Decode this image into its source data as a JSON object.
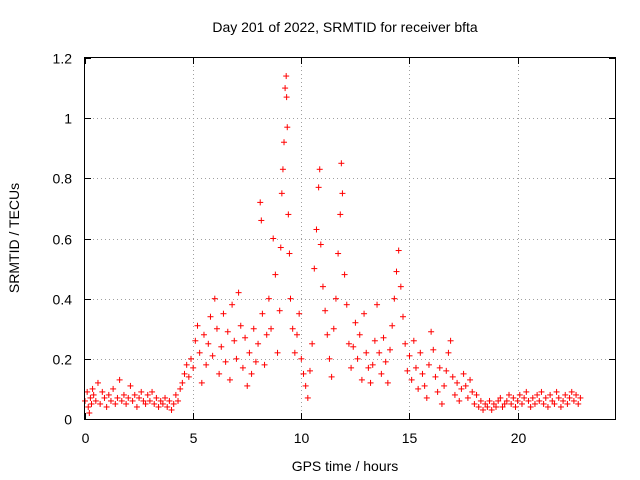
{
  "chart_data": {
    "type": "scatter",
    "title": "Day 201 of 2022, SRMTID for receiver bfta",
    "xlabel": "GPS time / hours",
    "ylabel": "SRMTID / TECUs",
    "xlim": [
      0,
      24.5
    ],
    "ylim": [
      0,
      1.2
    ],
    "x_ticks": [
      0,
      5,
      10,
      15,
      20
    ],
    "y_ticks": [
      0,
      0.2,
      0.4,
      0.6,
      0.8,
      1,
      1.2
    ],
    "x_tick_labels": [
      "0",
      "5",
      "10",
      "15",
      "20"
    ],
    "y_tick_labels": [
      "0",
      "0.2",
      "0.4",
      "0.6",
      "0.8",
      "1",
      "1.2"
    ],
    "grid": true,
    "marker": "plus",
    "color": "#ff0000",
    "series": [
      {
        "name": "SRMTID",
        "points": [
          [
            0.0,
            0.06
          ],
          [
            0.1,
            0.09
          ],
          [
            0.15,
            0.04
          ],
          [
            0.2,
            0.02
          ],
          [
            0.25,
            0.07
          ],
          [
            0.3,
            0.05
          ],
          [
            0.35,
            0.1
          ],
          [
            0.4,
            0.08
          ],
          [
            0.5,
            0.06
          ],
          [
            0.6,
            0.12
          ],
          [
            0.7,
            0.05
          ],
          [
            0.8,
            0.09
          ],
          [
            0.9,
            0.07
          ],
          [
            1.0,
            0.04
          ],
          [
            1.1,
            0.08
          ],
          [
            1.2,
            0.06
          ],
          [
            1.3,
            0.1
          ],
          [
            1.4,
            0.05
          ],
          [
            1.5,
            0.07
          ],
          [
            1.6,
            0.13
          ],
          [
            1.7,
            0.06
          ],
          [
            1.8,
            0.08
          ],
          [
            1.9,
            0.05
          ],
          [
            2.0,
            0.07
          ],
          [
            2.1,
            0.11
          ],
          [
            2.2,
            0.06
          ],
          [
            2.3,
            0.08
          ],
          [
            2.4,
            0.04
          ],
          [
            2.5,
            0.07
          ],
          [
            2.6,
            0.09
          ],
          [
            2.7,
            0.06
          ],
          [
            2.8,
            0.05
          ],
          [
            2.9,
            0.08
          ],
          [
            3.0,
            0.06
          ],
          [
            3.1,
            0.09
          ],
          [
            3.2,
            0.05
          ],
          [
            3.3,
            0.07
          ],
          [
            3.4,
            0.04
          ],
          [
            3.5,
            0.06
          ],
          [
            3.6,
            0.05
          ],
          [
            3.7,
            0.07
          ],
          [
            3.8,
            0.04
          ],
          [
            3.9,
            0.06
          ],
          [
            4.0,
            0.03
          ],
          [
            4.1,
            0.05
          ],
          [
            4.2,
            0.08
          ],
          [
            4.3,
            0.06
          ],
          [
            4.4,
            0.1
          ],
          [
            4.5,
            0.12
          ],
          [
            4.6,
            0.15
          ],
          [
            4.7,
            0.18
          ],
          [
            4.8,
            0.14
          ],
          [
            4.9,
            0.2
          ],
          [
            5.0,
            0.17
          ],
          [
            5.1,
            0.26
          ],
          [
            5.2,
            0.31
          ],
          [
            5.3,
            0.22
          ],
          [
            5.4,
            0.12
          ],
          [
            5.5,
            0.28
          ],
          [
            5.6,
            0.18
          ],
          [
            5.7,
            0.25
          ],
          [
            5.8,
            0.34
          ],
          [
            5.9,
            0.21
          ],
          [
            6.0,
            0.4
          ],
          [
            6.1,
            0.3
          ],
          [
            6.2,
            0.15
          ],
          [
            6.3,
            0.24
          ],
          [
            6.4,
            0.35
          ],
          [
            6.5,
            0.19
          ],
          [
            6.6,
            0.29
          ],
          [
            6.7,
            0.13
          ],
          [
            6.8,
            0.38
          ],
          [
            6.9,
            0.26
          ],
          [
            7.0,
            0.2
          ],
          [
            7.1,
            0.42
          ],
          [
            7.2,
            0.31
          ],
          [
            7.3,
            0.17
          ],
          [
            7.4,
            0.27
          ],
          [
            7.5,
            0.11
          ],
          [
            7.6,
            0.22
          ],
          [
            7.7,
            0.15
          ],
          [
            7.8,
            0.3
          ],
          [
            7.9,
            0.19
          ],
          [
            8.0,
            0.25
          ],
          [
            8.1,
            0.72
          ],
          [
            8.15,
            0.66
          ],
          [
            8.2,
            0.35
          ],
          [
            8.3,
            0.18
          ],
          [
            8.4,
            0.28
          ],
          [
            8.5,
            0.4
          ],
          [
            8.6,
            0.3
          ],
          [
            8.7,
            0.6
          ],
          [
            8.8,
            0.48
          ],
          [
            8.9,
            0.22
          ],
          [
            9.0,
            0.36
          ],
          [
            9.05,
            0.57
          ],
          [
            9.1,
            0.75
          ],
          [
            9.15,
            0.83
          ],
          [
            9.2,
            0.92
          ],
          [
            9.25,
            1.1
          ],
          [
            9.3,
            1.14
          ],
          [
            9.32,
            1.07
          ],
          [
            9.35,
            0.97
          ],
          [
            9.4,
            0.68
          ],
          [
            9.45,
            0.55
          ],
          [
            9.5,
            0.4
          ],
          [
            9.6,
            0.3
          ],
          [
            9.7,
            0.22
          ],
          [
            9.8,
            0.28
          ],
          [
            9.9,
            0.35
          ],
          [
            10.0,
            0.2
          ],
          [
            10.1,
            0.15
          ],
          [
            10.2,
            0.11
          ],
          [
            10.3,
            0.07
          ],
          [
            10.4,
            0.16
          ],
          [
            10.5,
            0.25
          ],
          [
            10.6,
            0.5
          ],
          [
            10.7,
            0.63
          ],
          [
            10.8,
            0.77
          ],
          [
            10.85,
            0.83
          ],
          [
            10.9,
            0.58
          ],
          [
            11.0,
            0.44
          ],
          [
            11.1,
            0.36
          ],
          [
            11.2,
            0.28
          ],
          [
            11.3,
            0.2
          ],
          [
            11.4,
            0.14
          ],
          [
            11.5,
            0.3
          ],
          [
            11.6,
            0.4
          ],
          [
            11.7,
            0.55
          ],
          [
            11.8,
            0.68
          ],
          [
            11.85,
            0.85
          ],
          [
            11.9,
            0.75
          ],
          [
            12.0,
            0.48
          ],
          [
            12.1,
            0.38
          ],
          [
            12.2,
            0.25
          ],
          [
            12.3,
            0.17
          ],
          [
            12.4,
            0.24
          ],
          [
            12.5,
            0.32
          ],
          [
            12.6,
            0.2
          ],
          [
            12.7,
            0.28
          ],
          [
            12.8,
            0.13
          ],
          [
            12.9,
            0.35
          ],
          [
            13.0,
            0.22
          ],
          [
            13.1,
            0.17
          ],
          [
            13.2,
            0.12
          ],
          [
            13.3,
            0.18
          ],
          [
            13.4,
            0.26
          ],
          [
            13.5,
            0.38
          ],
          [
            13.6,
            0.22
          ],
          [
            13.7,
            0.15
          ],
          [
            13.8,
            0.27
          ],
          [
            13.9,
            0.19
          ],
          [
            14.0,
            0.12
          ],
          [
            14.1,
            0.23
          ],
          [
            14.2,
            0.31
          ],
          [
            14.3,
            0.4
          ],
          [
            14.4,
            0.49
          ],
          [
            14.5,
            0.56
          ],
          [
            14.6,
            0.44
          ],
          [
            14.7,
            0.34
          ],
          [
            14.8,
            0.25
          ],
          [
            14.9,
            0.16
          ],
          [
            15.0,
            0.21
          ],
          [
            15.1,
            0.13
          ],
          [
            15.2,
            0.26
          ],
          [
            15.3,
            0.17
          ],
          [
            15.4,
            0.1
          ],
          [
            15.5,
            0.22
          ],
          [
            15.6,
            0.15
          ],
          [
            15.7,
            0.11
          ],
          [
            15.8,
            0.07
          ],
          [
            15.9,
            0.18
          ],
          [
            16.0,
            0.29
          ],
          [
            16.1,
            0.23
          ],
          [
            16.2,
            0.14
          ],
          [
            16.3,
            0.09
          ],
          [
            16.4,
            0.17
          ],
          [
            16.5,
            0.05
          ],
          [
            16.6,
            0.11
          ],
          [
            16.7,
            0.16
          ],
          [
            16.8,
            0.22
          ],
          [
            16.9,
            0.26
          ],
          [
            17.0,
            0.14
          ],
          [
            17.1,
            0.08
          ],
          [
            17.2,
            0.12
          ],
          [
            17.3,
            0.06
          ],
          [
            17.4,
            0.1
          ],
          [
            17.5,
            0.15
          ],
          [
            17.6,
            0.11
          ],
          [
            17.7,
            0.07
          ],
          [
            17.8,
            0.13
          ],
          [
            17.9,
            0.09
          ],
          [
            18.0,
            0.05
          ],
          [
            18.1,
            0.08
          ],
          [
            18.2,
            0.04
          ],
          [
            18.3,
            0.06
          ],
          [
            18.4,
            0.03
          ],
          [
            18.5,
            0.05
          ],
          [
            18.6,
            0.04
          ],
          [
            18.7,
            0.06
          ],
          [
            18.8,
            0.03
          ],
          [
            18.9,
            0.05
          ],
          [
            19.0,
            0.04
          ],
          [
            19.1,
            0.06
          ],
          [
            19.2,
            0.07
          ],
          [
            19.3,
            0.04
          ],
          [
            19.4,
            0.05
          ],
          [
            19.5,
            0.06
          ],
          [
            19.6,
            0.08
          ],
          [
            19.7,
            0.05
          ],
          [
            19.8,
            0.07
          ],
          [
            19.9,
            0.04
          ],
          [
            20.0,
            0.06
          ],
          [
            20.1,
            0.08
          ],
          [
            20.2,
            0.05
          ],
          [
            20.3,
            0.07
          ],
          [
            20.4,
            0.09
          ],
          [
            20.5,
            0.06
          ],
          [
            20.6,
            0.04
          ],
          [
            20.7,
            0.07
          ],
          [
            20.8,
            0.05
          ],
          [
            20.9,
            0.08
          ],
          [
            21.0,
            0.06
          ],
          [
            21.1,
            0.09
          ],
          [
            21.2,
            0.05
          ],
          [
            21.3,
            0.07
          ],
          [
            21.4,
            0.04
          ],
          [
            21.5,
            0.08
          ],
          [
            21.6,
            0.06
          ],
          [
            21.7,
            0.05
          ],
          [
            21.8,
            0.09
          ],
          [
            21.9,
            0.07
          ],
          [
            22.0,
            0.04
          ],
          [
            22.1,
            0.06
          ],
          [
            22.2,
            0.08
          ],
          [
            22.3,
            0.05
          ],
          [
            22.4,
            0.07
          ],
          [
            22.5,
            0.09
          ],
          [
            22.6,
            0.06
          ],
          [
            22.7,
            0.08
          ],
          [
            22.8,
            0.05
          ],
          [
            22.9,
            0.07
          ]
        ]
      }
    ]
  }
}
